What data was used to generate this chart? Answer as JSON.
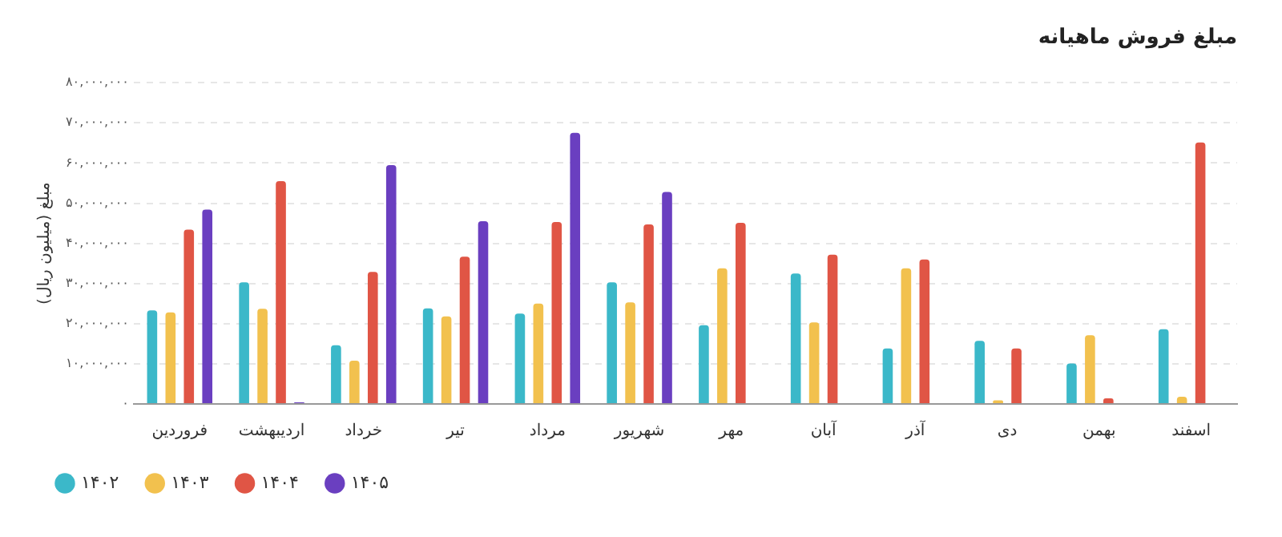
{
  "chart_data": {
    "type": "bar",
    "title": "مبلغ فروش ماهیانه",
    "ylabel": "مبلغ (میلیون ریال)",
    "categories": [
      "فروردین",
      "اردیبهشت",
      "خرداد",
      "تیر",
      "مرداد",
      "شهریور",
      "مهر",
      "آبان",
      "آذر",
      "دی",
      "بهمن",
      "اسفند"
    ],
    "series": [
      {
        "name": "۱۴۰۲",
        "color": "#3bb8c9",
        "values": [
          23300000,
          30300000,
          14600000,
          23800000,
          22500000,
          30300000,
          19600000,
          32500000,
          13800000,
          15700000,
          10100000,
          18600000
        ]
      },
      {
        "name": "۱۴۰۳",
        "color": "#f2c14e",
        "values": [
          22800000,
          23700000,
          10800000,
          21800000,
          25000000,
          25300000,
          33800000,
          20300000,
          33800000,
          900000,
          17100000,
          1800000
        ]
      },
      {
        "name": "۱۴۰۴",
        "color": "#e05545",
        "values": [
          43400000,
          55500000,
          32900000,
          36700000,
          45300000,
          44700000,
          45100000,
          37200000,
          36000000,
          13800000,
          1400000,
          65100000
        ]
      },
      {
        "name": "۱۴۰۵",
        "color": "#6a3fc0",
        "values": [
          48400000,
          400000,
          59500000,
          45500000,
          67500000,
          52800000,
          null,
          null,
          null,
          null,
          null,
          null
        ]
      }
    ],
    "ylim": [
      0,
      80000000
    ],
    "yticks": [
      {
        "value": 0,
        "label": "۰"
      },
      {
        "value": 10000000,
        "label": "۱۰,۰۰۰,۰۰۰"
      },
      {
        "value": 20000000,
        "label": "۲۰,۰۰۰,۰۰۰"
      },
      {
        "value": 30000000,
        "label": "۳۰,۰۰۰,۰۰۰"
      },
      {
        "value": 40000000,
        "label": "۴۰,۰۰۰,۰۰۰"
      },
      {
        "value": 50000000,
        "label": "۵۰,۰۰۰,۰۰۰"
      },
      {
        "value": 60000000,
        "label": "۶۰,۰۰۰,۰۰۰"
      },
      {
        "value": 70000000,
        "label": "۷۰,۰۰۰,۰۰۰"
      },
      {
        "value": 80000000,
        "label": "۸۰,۰۰۰,۰۰۰"
      }
    ],
    "grid": "y",
    "legend": "bottom left"
  }
}
